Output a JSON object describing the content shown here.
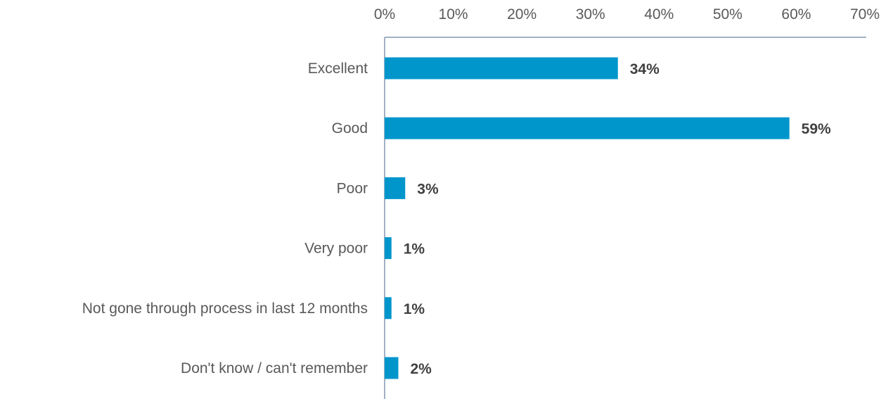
{
  "chart_data": {
    "type": "bar",
    "orientation": "horizontal",
    "categories": [
      "Excellent",
      "Good",
      "Poor",
      "Very poor",
      "Not gone through process in last 12 months",
      "Don't know / can't remember"
    ],
    "values": [
      34,
      59,
      3,
      1,
      1,
      2
    ],
    "value_labels": [
      "34%",
      "59%",
      "3%",
      "1%",
      "1%",
      "2%"
    ],
    "xlim": [
      0,
      70
    ],
    "x_ticks": [
      0,
      10,
      20,
      30,
      40,
      50,
      60,
      70
    ],
    "x_tick_labels": [
      "0%",
      "10%",
      "20%",
      "30%",
      "40%",
      "50%",
      "60%",
      "70%"
    ],
    "x_axis_position": "top",
    "grid": false,
    "legend": "none",
    "title": "",
    "xlabel": "",
    "ylabel": ""
  },
  "colors": {
    "bar": "#0096CC",
    "axis": "#8497B0"
  }
}
